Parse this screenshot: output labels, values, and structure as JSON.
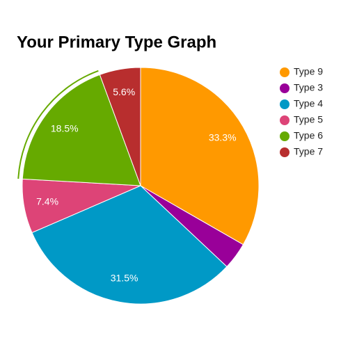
{
  "chart_data": {
    "type": "pie",
    "title": "Your Primary Type Graph",
    "categories": [
      "Type 9",
      "Type 3",
      "Type 4",
      "Type 5",
      "Type 6",
      "Type 7"
    ],
    "values": [
      33.3,
      3.7,
      31.5,
      7.4,
      18.5,
      5.6
    ],
    "value_labels": [
      "33.3%",
      null,
      "31.5%",
      "7.4%",
      "18.5%",
      "5.6%"
    ],
    "colors": [
      "#ff9900",
      "#990099",
      "#0099c6",
      "#dd4477",
      "#66aa00",
      "#b82e2e"
    ],
    "highlight_index": 4,
    "legend": "right"
  }
}
